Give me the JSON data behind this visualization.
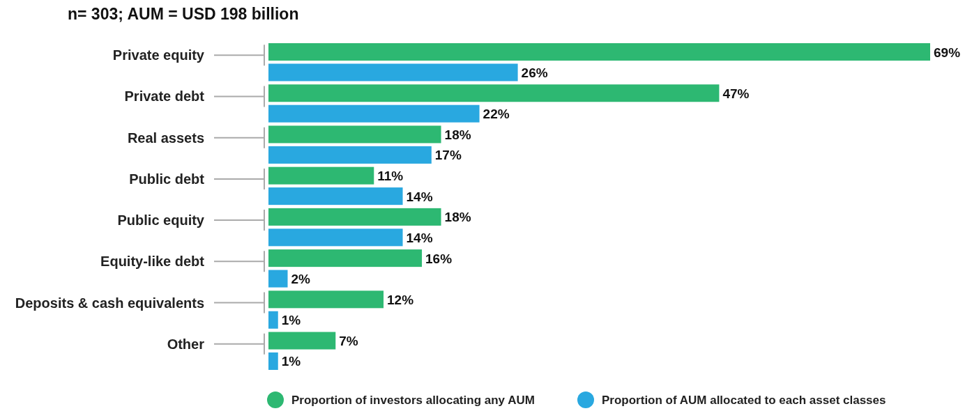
{
  "chart_data": {
    "type": "bar",
    "orientation": "horizontal",
    "title": "n= 303; AUM = USD 198 billion",
    "categories": [
      "Private equity",
      "Private debt",
      "Real assets",
      "Public debt",
      "Public equity",
      "Equity-like debt",
      "Deposits & cash equivalents",
      "Other"
    ],
    "series": [
      {
        "name": "Proportion of investors allocating any AUM",
        "color": "#2db872",
        "values": [
          69,
          47,
          18,
          11,
          18,
          16,
          12,
          7
        ],
        "value_labels": [
          "69%",
          "47%",
          "18%",
          "11%",
          "18%",
          "16%",
          "12%",
          "7%"
        ]
      },
      {
        "name": "Proportion of AUM allocated to each asset classes",
        "color": "#29a8e0",
        "values": [
          26,
          22,
          17,
          14,
          14,
          2,
          1,
          1
        ],
        "value_labels": [
          "26%",
          "22%",
          "17%",
          "14%",
          "14%",
          "2%",
          "1%",
          "1%"
        ]
      }
    ],
    "legend": "bottom"
  }
}
